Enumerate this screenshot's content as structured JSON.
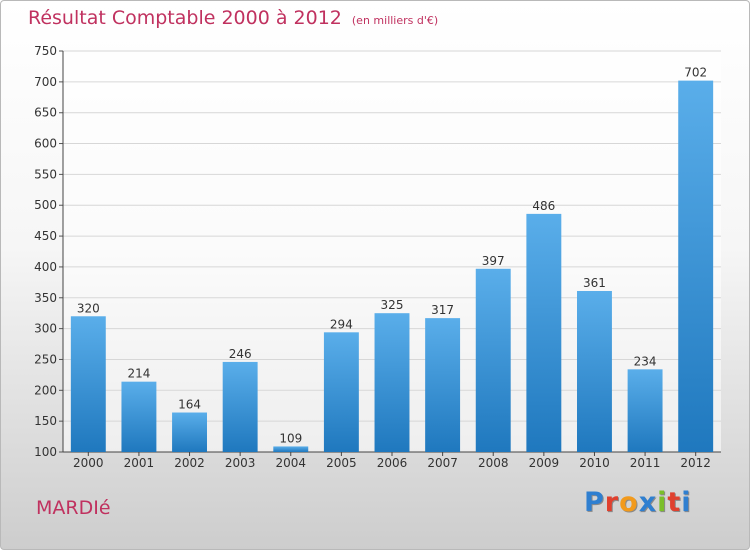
{
  "header": {
    "title": "Résultat Comptable 2000 à 2012",
    "unit": "(en milliers d'€)"
  },
  "footer": {
    "commune": "MARDIé",
    "logo": "Proxiti"
  },
  "colors": {
    "title": "#c0315f",
    "bar_top": "#5aaeea",
    "bar_bottom": "#1f78be",
    "logo": [
      "#2f7fd0",
      "#e0402e",
      "#f29a1c",
      "#2f7fd0",
      "#7bbf2a",
      "#e0402e",
      "#2f7fd0"
    ]
  },
  "chart_data": {
    "type": "bar",
    "title": "Résultat Comptable 2000 à 2012",
    "subtitle": "(en milliers d'€)",
    "categories": [
      "2000",
      "2001",
      "2002",
      "2003",
      "2004",
      "2005",
      "2006",
      "2007",
      "2008",
      "2009",
      "2010",
      "2011",
      "2012"
    ],
    "values": [
      320,
      214,
      164,
      246,
      109,
      294,
      325,
      317,
      397,
      486,
      361,
      234,
      702
    ],
    "ylim": [
      100,
      750
    ],
    "yticks": [
      100,
      150,
      200,
      250,
      300,
      350,
      400,
      450,
      500,
      550,
      600,
      650,
      700,
      750
    ],
    "grid": true,
    "data_labels": true,
    "legend": "none"
  }
}
